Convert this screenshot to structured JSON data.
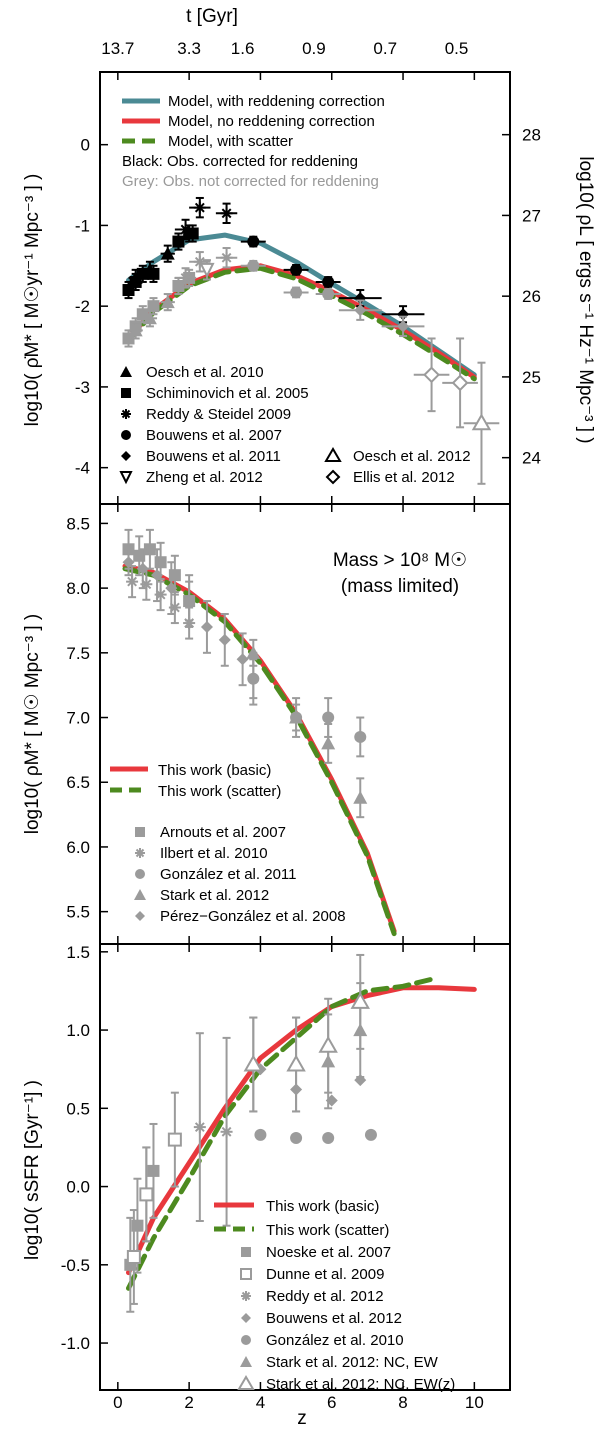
{
  "figure": {
    "top_axis_label": "t  [Gyr]",
    "top_ticks": [
      "13.7",
      "3.3",
      "1.6",
      "0.9",
      "0.7",
      "0.5"
    ],
    "top_tick_z": [
      0,
      2,
      3.5,
      5.5,
      7.5,
      9.5
    ],
    "x_label": "z",
    "x_ticks": [
      "0",
      "2",
      "4",
      "6",
      "8",
      "10"
    ],
    "xlim": [
      -0.5,
      11
    ]
  },
  "colors": {
    "teal": "#4b8a94",
    "red": "#e8383d",
    "green": "#4d8a1f",
    "grey": "#9b9b9b",
    "black": "#000000"
  },
  "chart_data": [
    {
      "type": "line",
      "panel": "top",
      "ylabel": "log10( ρ̇M* [ M☉yr⁻¹ Mpc⁻³ ] )",
      "ylabel_right": "log10( ρL [ ergs s⁻¹ Hz⁻¹ Mpc⁻³ ] )",
      "ylim": [
        -4.45,
        0.9
      ],
      "y_ticks": [
        "0",
        "-1",
        "-2",
        "-3",
        "-4"
      ],
      "right_ticks": [
        "28",
        "27",
        "26",
        "25",
        "24"
      ],
      "legend_lines": [
        "Model, with reddening correction",
        "Model, no reddening correction",
        "Model, with scatter"
      ],
      "notes": [
        "Black: Obs. corrected for reddening",
        "Grey: Obs. not corrected for reddening"
      ],
      "legend_points": [
        "Oesch et al. 2010",
        "Schiminovich et al. 2005",
        "Reddy & Steidel 2009",
        "Bouwens et al. 2007",
        "Bouwens et al. 2011",
        "Zheng et al. 2012",
        "Oesch et al. 2012",
        "Ellis et al. 2012"
      ],
      "series": [
        {
          "name": "Model, with reddening correction",
          "color": "teal",
          "style": "solid",
          "x": [
            0.3,
            1,
            2,
            3,
            4,
            5,
            6,
            7,
            8,
            9,
            10
          ],
          "y": [
            -1.68,
            -1.45,
            -1.18,
            -1.12,
            -1.22,
            -1.45,
            -1.72,
            -1.98,
            -2.25,
            -2.55,
            -2.85
          ]
        },
        {
          "name": "Model, no reddening correction",
          "color": "red",
          "style": "solid",
          "x": [
            0.3,
            1,
            2,
            3,
            4,
            5,
            6,
            7,
            8,
            9,
            10
          ],
          "y": [
            -2.4,
            -2.05,
            -1.72,
            -1.55,
            -1.5,
            -1.62,
            -1.82,
            -2.05,
            -2.3,
            -2.58,
            -2.88
          ]
        },
        {
          "name": "Model, with scatter",
          "color": "green",
          "style": "dashed",
          "x": [
            0.3,
            1,
            2,
            3,
            4,
            5,
            6,
            7,
            8,
            9,
            10
          ],
          "y": [
            -2.42,
            -2.08,
            -1.75,
            -1.58,
            -1.53,
            -1.66,
            -1.87,
            -2.1,
            -2.35,
            -2.62,
            -2.9
          ]
        }
      ],
      "points": [
        {
          "name": "Schiminovich black",
          "marker": "square",
          "color": "black",
          "x": [
            0.3,
            0.5,
            0.7,
            1.0,
            1.7,
            2.0,
            2.1
          ],
          "y": [
            -1.8,
            -1.7,
            -1.6,
            -1.6,
            -1.2,
            -1.1,
            -1.1
          ],
          "xerr": [
            0.1,
            0.1,
            0.1,
            0.1,
            0.1,
            0.1,
            0.1
          ],
          "yerr": [
            0.1,
            0.1,
            0.1,
            0.1,
            0.1,
            0.1,
            0.1
          ]
        },
        {
          "name": "Oesch black",
          "marker": "triangle",
          "color": "black",
          "x": [
            0.5,
            0.9,
            1.4
          ],
          "y": [
            -1.65,
            -1.55,
            -1.35
          ],
          "xerr": [
            0.2,
            0.2,
            0.2
          ],
          "yerr": [
            0.1,
            0.1,
            0.1
          ]
        },
        {
          "name": "Reddy black",
          "marker": "star",
          "color": "black",
          "x": [
            1.9,
            2.3,
            3.05
          ],
          "y": [
            -1.05,
            -0.78,
            -0.85
          ],
          "xerr": [
            0.3,
            0.3,
            0.3
          ],
          "yerr": [
            0.12,
            0.12,
            0.12
          ]
        },
        {
          "name": "Bouwens07 black",
          "marker": "circle",
          "color": "black",
          "x": [
            3.8,
            5.0,
            5.9
          ],
          "y": [
            -1.2,
            -1.55,
            -1.7
          ],
          "xerr": [
            0.35,
            0.35,
            0.35
          ],
          "yerr": [
            0.06,
            0.06,
            0.06
          ]
        },
        {
          "name": "Bouwens11 black",
          "marker": "diamond",
          "color": "black",
          "x": [
            6.8,
            8.0
          ],
          "y": [
            -1.9,
            -2.1
          ],
          "xerr": [
            0.6,
            0.6
          ],
          "yerr": [
            0.1,
            0.1
          ]
        },
        {
          "name": "Schiminovich grey",
          "marker": "square",
          "color": "grey",
          "x": [
            0.3,
            0.5,
            0.7,
            1.0,
            1.7,
            2.0
          ],
          "y": [
            -2.4,
            -2.25,
            -2.1,
            -2.0,
            -1.75,
            -1.65
          ],
          "xerr": [
            0.1,
            0.1,
            0.1,
            0.1,
            0.1,
            0.1
          ],
          "yerr": [
            0.1,
            0.1,
            0.1,
            0.1,
            0.1,
            0.1
          ]
        },
        {
          "name": "Oesch grey",
          "marker": "triangle",
          "color": "grey",
          "x": [
            0.5,
            0.9,
            1.4
          ],
          "y": [
            -2.3,
            -2.15,
            -1.95
          ],
          "xerr": [
            0.2,
            0.2,
            0.2
          ],
          "yerr": [
            0.1,
            0.1,
            0.1
          ]
        },
        {
          "name": "Reddy grey",
          "marker": "star",
          "color": "grey",
          "x": [
            1.9,
            2.3,
            3.05
          ],
          "y": [
            -1.65,
            -1.45,
            -1.4
          ],
          "xerr": [
            0.3,
            0.3,
            0.3
          ],
          "yerr": [
            0.12,
            0.12,
            0.12
          ]
        },
        {
          "name": "Zheng grey",
          "marker": "tri-down",
          "color": "grey",
          "x": [
            2.5
          ],
          "y": [
            -1.55
          ],
          "xerr": [
            0
          ],
          "yerr": [
            0.12
          ]
        },
        {
          "name": "Bouwens07 grey",
          "marker": "circle",
          "color": "grey",
          "x": [
            3.8,
            5.0,
            5.9
          ],
          "y": [
            -1.5,
            -1.83,
            -1.85
          ],
          "xerr": [
            0.35,
            0.35,
            0.35
          ],
          "yerr": [
            0.06,
            0.06,
            0.06
          ]
        },
        {
          "name": "Bouwens11 grey",
          "marker": "diamond",
          "color": "grey",
          "x": [
            6.8,
            8.0
          ],
          "y": [
            -2.05,
            -2.25
          ],
          "xerr": [
            0.6,
            0.6
          ],
          "yerr": [
            0.12,
            0.12
          ]
        },
        {
          "name": "Ellis grey",
          "marker": "diamond-open",
          "color": "grey",
          "x": [
            8.8,
            9.6
          ],
          "y": [
            -2.85,
            -2.95
          ],
          "xerr": [
            0.5,
            0.5
          ],
          "yerr": [
            0.45,
            0.55
          ]
        },
        {
          "name": "Oesch2012 grey",
          "marker": "triangle-open",
          "color": "grey",
          "x": [
            10.2
          ],
          "y": [
            -3.45
          ],
          "xerr": [
            0.5
          ],
          "yerr": [
            0.75
          ]
        }
      ]
    },
    {
      "type": "line",
      "panel": "middle",
      "ylabel": "log10( ρM* [ M☉ Mpc⁻³ ] )",
      "ylim": [
        5.25,
        8.65
      ],
      "y_ticks": [
        "8.5",
        "8.0",
        "7.5",
        "7.0",
        "6.5",
        "6.0",
        "5.5"
      ],
      "annotation": [
        "Mass > 10⁸ M☉",
        "(mass limited)"
      ],
      "legend_lines": [
        "This work (basic)",
        "This work (scatter)"
      ],
      "legend_points": [
        "Arnouts et al. 2007",
        "Ilbert et al. 2010",
        "González et al. 2011",
        "Stark et al. 2012",
        "Pérez−González et al. 2008"
      ],
      "series": [
        {
          "name": "This work (basic)",
          "color": "red",
          "style": "solid",
          "x": [
            0.2,
            1,
            2,
            3,
            4,
            5,
            6,
            7,
            7.75
          ],
          "y": [
            8.17,
            8.12,
            7.97,
            7.76,
            7.44,
            7.03,
            6.52,
            5.95,
            5.35
          ]
        },
        {
          "name": "This work (scatter)",
          "color": "green",
          "style": "dashed",
          "x": [
            0.2,
            1,
            2,
            3,
            4,
            5,
            6,
            7,
            7.75
          ],
          "y": [
            8.15,
            8.1,
            7.95,
            7.74,
            7.42,
            7.01,
            6.5,
            5.93,
            5.33
          ]
        }
      ],
      "points": [
        {
          "name": "Arnouts",
          "marker": "square",
          "color": "grey",
          "x": [
            0.3,
            0.6,
            0.9,
            1.2,
            1.6,
            2.0
          ],
          "y": [
            8.3,
            8.25,
            8.3,
            8.2,
            8.1,
            7.9
          ],
          "yerr": [
            0.15,
            0.15,
            0.15,
            0.15,
            0.15,
            0.15
          ]
        },
        {
          "name": "Ilbert",
          "marker": "star",
          "color": "grey",
          "x": [
            0.4,
            0.8,
            1.2,
            1.6,
            2.0
          ],
          "y": [
            8.05,
            8.03,
            7.95,
            7.85,
            7.73
          ],
          "yerr": [
            0.12,
            0.12,
            0.12,
            0.12,
            0.12
          ]
        },
        {
          "name": "Perez-Gonzalez",
          "marker": "diamond",
          "color": "grey",
          "x": [
            0.3,
            0.7,
            1.1,
            1.5,
            2.0,
            2.5,
            3.0,
            3.5,
            3.8
          ],
          "y": [
            8.2,
            8.15,
            8.1,
            8.0,
            7.9,
            7.7,
            7.6,
            7.45,
            7.3
          ],
          "yerr": [
            0.1,
            0.15,
            0.2,
            0.2,
            0.2,
            0.2,
            0.2,
            0.2,
            0.2
          ]
        },
        {
          "name": "Gonzalez",
          "marker": "circle",
          "color": "grey",
          "x": [
            3.8,
            5.0,
            5.9,
            6.8
          ],
          "y": [
            7.3,
            7.0,
            7.0,
            6.85
          ],
          "yerr": [
            0.15,
            0.15,
            0.15,
            0.15
          ]
        },
        {
          "name": "Stark",
          "marker": "triangle",
          "color": "grey",
          "x": [
            3.8,
            5.0,
            5.9,
            6.8
          ],
          "y": [
            7.5,
            7.0,
            6.8,
            6.38
          ],
          "yerr": [
            0.1,
            0.1,
            0.15,
            0.15
          ]
        }
      ]
    },
    {
      "type": "line",
      "panel": "bottom",
      "ylabel": "log10( sSFR [Gyr⁻¹] )",
      "ylim": [
        -1.3,
        1.55
      ],
      "y_ticks": [
        "1.5",
        "1.0",
        "0.5",
        "0.0",
        "-0.5",
        "-1.0"
      ],
      "legend_lines": [
        "This work (basic)",
        "This work (scatter)"
      ],
      "legend_points": [
        "Noeske et al. 2007",
        "Dunne et al. 2009",
        "Reddy et al. 2012",
        "Bouwens et al. 2012",
        "González et al. 2010",
        "Stark et al. 2012: NC, EW",
        "Stark et al. 2012: NC, EW(z)"
      ],
      "series": [
        {
          "name": "This work (basic)",
          "color": "red",
          "style": "solid",
          "x": [
            0.3,
            1,
            2,
            3,
            4,
            5,
            6,
            7,
            8,
            9,
            10
          ],
          "y": [
            -0.55,
            -0.2,
            0.15,
            0.5,
            0.82,
            1.0,
            1.15,
            1.22,
            1.27,
            1.27,
            1.26
          ]
        },
        {
          "name": "This work (scatter)",
          "color": "green",
          "style": "dashed",
          "x": [
            0.3,
            1,
            2,
            3,
            4,
            5,
            6,
            7,
            8,
            8.9
          ],
          "y": [
            -0.65,
            -0.33,
            0.05,
            0.45,
            0.75,
            0.95,
            1.15,
            1.25,
            1.28,
            1.33
          ]
        }
      ],
      "points": [
        {
          "name": "Noeske",
          "marker": "square",
          "color": "grey",
          "x": [
            0.35,
            0.55,
            0.8,
            1.0
          ],
          "y": [
            -0.5,
            -0.25,
            -0.05,
            0.1
          ],
          "yerr": [
            0.3,
            0.3,
            0.3,
            0.3
          ]
        },
        {
          "name": "Dunne",
          "marker": "square-open",
          "color": "grey",
          "x": [
            0.45,
            0.8,
            1.6
          ],
          "y": [
            -0.45,
            -0.05,
            0.3
          ],
          "yerr": [
            0.3,
            0.3,
            0.3
          ]
        },
        {
          "name": "Reddy",
          "marker": "star",
          "color": "grey",
          "x": [
            2.3,
            3.05
          ],
          "y": [
            0.38,
            0.35
          ],
          "yerr": [
            0.6,
            0.6
          ]
        },
        {
          "name": "Bouwens12",
          "marker": "diamond",
          "color": "grey",
          "x": [
            4.0,
            5.0,
            6.0,
            6.8
          ],
          "y": [
            0.75,
            0.62,
            0.55,
            0.68
          ],
          "yerr": [
            0,
            0,
            0,
            0
          ]
        },
        {
          "name": "Gonzalez",
          "marker": "circle",
          "color": "grey",
          "x": [
            4.0,
            5.0,
            5.9,
            7.1
          ],
          "y": [
            0.33,
            0.31,
            0.31,
            0.33
          ],
          "yerr": [
            0,
            0,
            0,
            0
          ]
        },
        {
          "name": "Stark NC EW",
          "marker": "triangle",
          "color": "grey",
          "x": [
            3.8,
            5.0,
            5.9,
            6.8
          ],
          "y": [
            0.78,
            0.78,
            0.8,
            1.0
          ],
          "yerr": [
            0.3,
            0.3,
            0.3,
            0.3
          ]
        },
        {
          "name": "Stark NC EWz",
          "marker": "triangle-open",
          "color": "grey",
          "x": [
            3.8,
            5.0,
            5.9,
            6.8
          ],
          "y": [
            0.78,
            0.78,
            0.9,
            1.18
          ],
          "yerr": [
            0.3,
            0.3,
            0.3,
            0.3
          ]
        }
      ]
    }
  ]
}
